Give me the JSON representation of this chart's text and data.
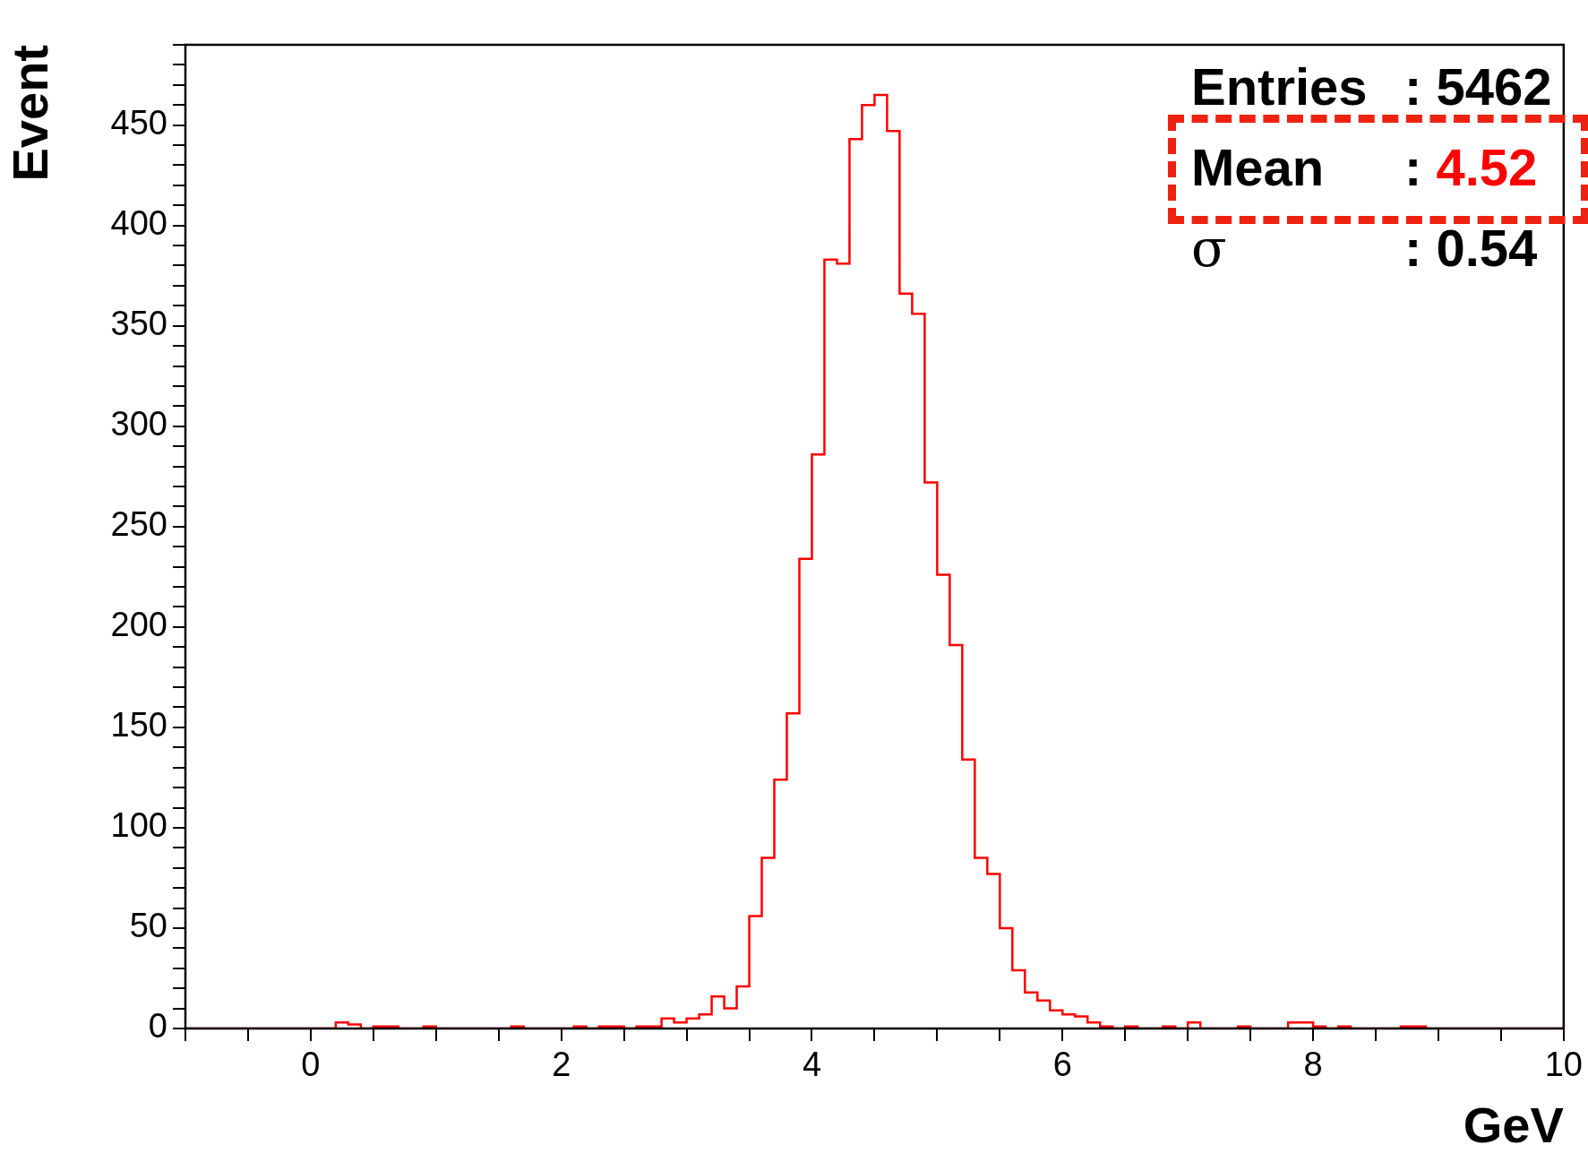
{
  "chart_data": {
    "type": "histogram",
    "xlabel": "GeV",
    "ylabel": "Event",
    "annotations": [
      "Entries : 5462",
      "Mean : 4.52",
      "σ : 0.54"
    ],
    "bins": [
      -1,
      -0.9,
      -0.8,
      -0.7,
      -0.6,
      -0.5,
      -0.4,
      -0.3,
      -0.2,
      -0.1,
      0,
      0.1,
      0.2,
      0.3,
      0.4,
      0.5,
      0.6,
      0.7,
      0.8,
      0.9,
      1,
      1.1,
      1.2,
      1.3,
      1.4,
      1.5,
      1.6,
      1.7,
      1.8,
      1.9,
      2,
      2.1,
      2.2,
      2.3,
      2.4,
      2.5,
      2.6,
      2.7,
      2.8,
      2.9,
      3,
      3.1,
      3.2,
      3.3,
      3.4,
      3.5,
      3.6,
      3.7,
      3.8,
      3.9,
      4,
      4.1,
      4.2,
      4.3,
      4.4,
      4.5,
      4.6,
      4.7,
      4.8,
      4.9,
      5,
      5.1,
      5.2,
      5.3,
      5.4,
      5.5,
      5.6,
      5.7,
      5.8,
      5.9,
      6,
      6.1,
      6.2,
      6.3,
      6.4,
      6.5,
      6.6,
      6.7,
      6.8,
      6.9,
      7,
      7.1,
      7.2,
      7.3,
      7.4,
      7.5,
      7.6,
      7.7,
      7.8,
      7.9,
      8,
      8.1,
      8.2,
      8.3,
      8.4,
      8.5,
      8.6,
      8.7,
      8.8,
      8.9,
      9,
      9.1,
      9.2,
      9.3,
      9.4,
      9.5,
      9.6,
      9.7,
      9.8,
      9.9,
      10
    ],
    "values": [
      0,
      0,
      0,
      0,
      0,
      0,
      0,
      0,
      0,
      0,
      0,
      0,
      3,
      2,
      0,
      1,
      1,
      0,
      0,
      1,
      0,
      0,
      0,
      0,
      0,
      0,
      1,
      0,
      0,
      0,
      0,
      1,
      0,
      1,
      1,
      0,
      1,
      1,
      5,
      3,
      5,
      7,
      16,
      10,
      21,
      56,
      85,
      124,
      157,
      234,
      286,
      383,
      381,
      443,
      460,
      465,
      447,
      366,
      356,
      272,
      226,
      191,
      134,
      85,
      77,
      50,
      29,
      18,
      14,
      9,
      7,
      6,
      3,
      1,
      0,
      1,
      0,
      0,
      1,
      0,
      3,
      0,
      0,
      0,
      1,
      0,
      0,
      0,
      3,
      3,
      1,
      0,
      1,
      0,
      0,
      0,
      0,
      1,
      1,
      0,
      0,
      0,
      0,
      0,
      0,
      0,
      0,
      0,
      0,
      0
    ],
    "color": "#ff0000",
    "xlim": [
      -1,
      10
    ],
    "xticks": [
      0,
      2,
      4,
      6,
      8,
      10
    ],
    "ylim": [
      0,
      490
    ],
    "yticks": [
      0,
      50,
      100,
      150,
      200,
      250,
      300,
      350,
      400,
      450
    ],
    "grid": false,
    "legend": false
  }
}
